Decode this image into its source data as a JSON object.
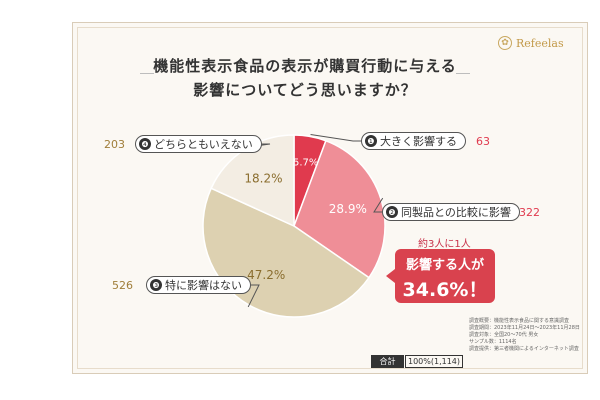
{
  "brand": {
    "name": "Refeelas",
    "mark": "✿"
  },
  "title": {
    "line1": "機能性表示食品の表示が購買行動に与える",
    "line2": "影響についてどう思いますか？"
  },
  "chart_data": {
    "type": "pie",
    "total": 1114,
    "slices": [
      {
        "marker": "❶",
        "label": "大きく影響する",
        "percent": 5.7,
        "count": 63,
        "pct_label": "5.7%",
        "color": "#e03a4e",
        "text_color": "#e03a4e"
      },
      {
        "marker": "❷",
        "label": "同製品との比較に影響",
        "percent": 28.9,
        "count": 322,
        "pct_label": "28.9%",
        "color": "#ef8e97",
        "text_color": "#e03a4e"
      },
      {
        "marker": "❸",
        "label": "特に影響はない",
        "percent": 47.2,
        "count": 526,
        "pct_label": "47.2%",
        "color": "#ddd1b1",
        "text_color": "#a07e3a"
      },
      {
        "marker": "❹",
        "label": "どちらともいえない",
        "percent": 18.2,
        "count": 203,
        "pct_label": "18.2%",
        "color": "#f3ede3",
        "text_color": "#a07e3a"
      }
    ]
  },
  "callout": {
    "lead": "約3人に1人",
    "line1": "影響する人が",
    "line2": "34.6%！"
  },
  "notes": [
    "調査概要：機能性表示食品に関する意識調査",
    "調査期間：2023年11月24日〜2023年11月28日",
    "調査対象：全国20〜70代 男女",
    "サンプル数：1114名",
    "調査提供：第三者機関によるインターネット調査"
  ],
  "total": {
    "label": "合計",
    "value": "100%(1,114)"
  },
  "colors": {
    "accent": "#d9424e",
    "gold": "#c39a4a"
  }
}
